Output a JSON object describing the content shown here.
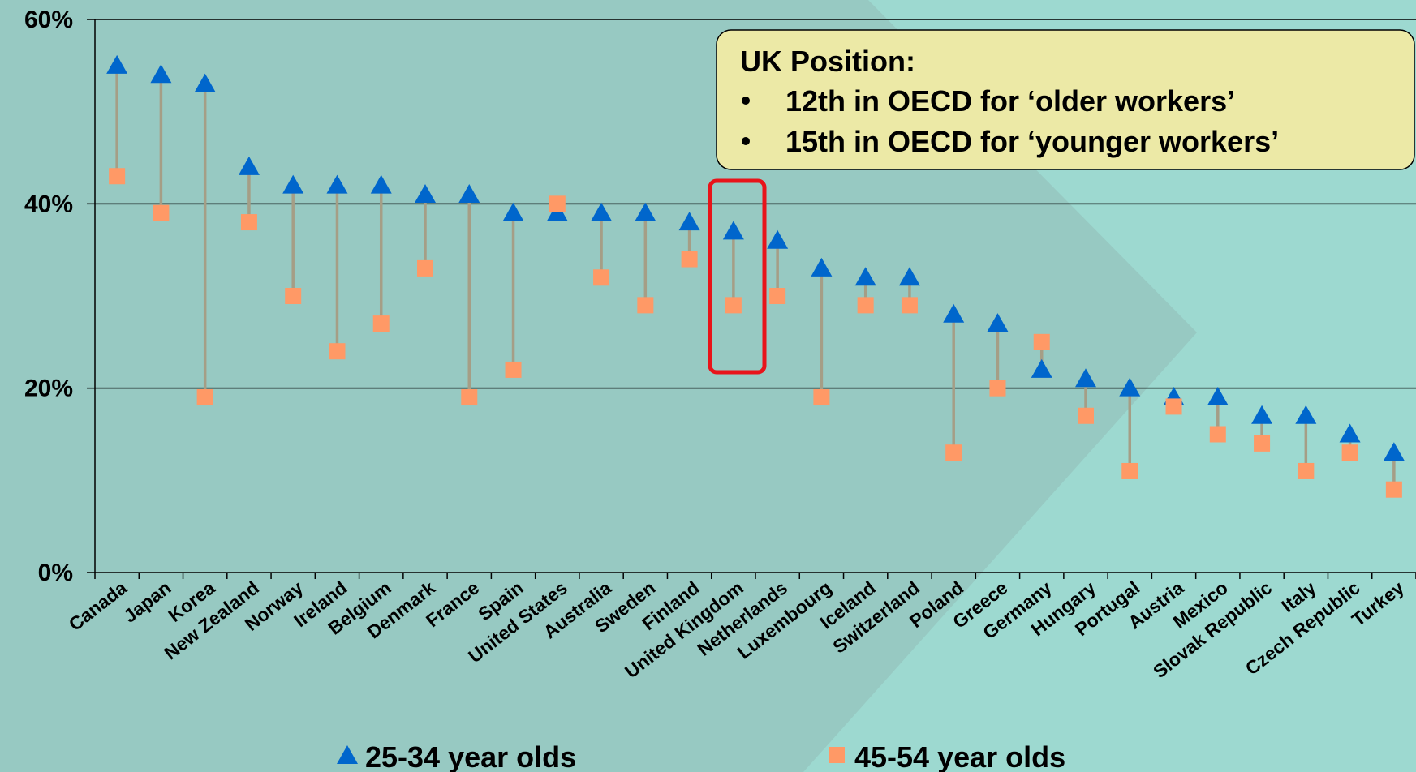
{
  "chart_data": {
    "type": "dot_range",
    "categories": [
      "Canada",
      "Japan",
      "Korea",
      "New Zealand",
      "Norway",
      "Ireland",
      "Belgium",
      "Denmark",
      "France",
      "Spain",
      "United States",
      "Australia",
      "Sweden",
      "Finland",
      "United Kingdom",
      "Netherlands",
      "Luxembourg",
      "Iceland",
      "Switzerland",
      "Poland",
      "Greece",
      "Germany",
      "Hungary",
      "Portugal",
      "Austria",
      "Mexico",
      "Slovak Republic",
      "Italy",
      "Czech Republic",
      "Turkey"
    ],
    "series": [
      {
        "name": "25-34 year olds",
        "color": "#0066cc",
        "marker": "triangle",
        "values": [
          55,
          54,
          53,
          44,
          42,
          42,
          42,
          41,
          41,
          39,
          39,
          39,
          39,
          38,
          37,
          36,
          33,
          32,
          32,
          28,
          27,
          22,
          21,
          20,
          19,
          19,
          17,
          17,
          15,
          13
        ]
      },
      {
        "name": "45-54 year olds",
        "color": "#ff9966",
        "marker": "square",
        "values": [
          43,
          39,
          19,
          38,
          30,
          24,
          27,
          33,
          19,
          22,
          40,
          32,
          29,
          34,
          29,
          30,
          19,
          29,
          29,
          13,
          20,
          25,
          17,
          11,
          18,
          15,
          14,
          11,
          13,
          9
        ]
      }
    ],
    "ylim": [
      0,
      60
    ],
    "yticks": [
      {
        "value": 0,
        "label": "0%"
      },
      {
        "value": 20,
        "label": "20%"
      },
      {
        "value": 40,
        "label": "40%"
      },
      {
        "value": 60,
        "label": "60%"
      }
    ],
    "grid": true,
    "annotation": {
      "title": "UK Position:",
      "items": [
        "12th in OECD for ‘older workers’",
        "15th in OECD for ‘younger workers’"
      ]
    }
  }
}
